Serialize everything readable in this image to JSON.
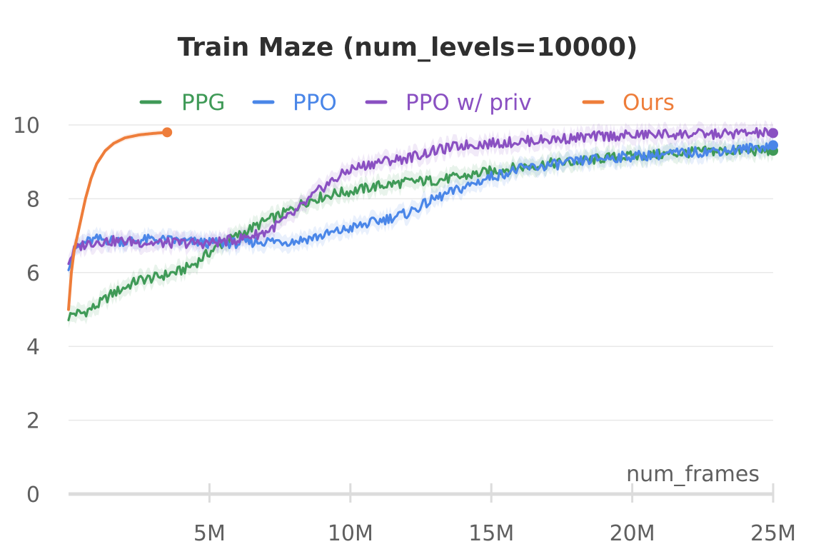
{
  "chart_data": {
    "type": "line",
    "title": "Train Maze (num_levels=10000)",
    "xlabel": "num_frames",
    "ylabel": "",
    "xlim": [
      0,
      25000000
    ],
    "ylim": [
      0,
      10
    ],
    "x_ticks": [
      {
        "value": 5000000,
        "label": "5M"
      },
      {
        "value": 10000000,
        "label": "10M"
      },
      {
        "value": 15000000,
        "label": "15M"
      },
      {
        "value": 20000000,
        "label": "20M"
      },
      {
        "value": 25000000,
        "label": "25M"
      }
    ],
    "y_ticks": [
      {
        "value": 0,
        "label": "0"
      },
      {
        "value": 2,
        "label": "2"
      },
      {
        "value": 4,
        "label": "4"
      },
      {
        "value": 6,
        "label": "6"
      },
      {
        "value": 8,
        "label": "8"
      },
      {
        "value": 10,
        "label": "10"
      }
    ],
    "grid": true,
    "legend": "top",
    "series": [
      {
        "name": "PPG",
        "color": "#3f9a57",
        "x": [
          0,
          200000,
          500000,
          1000000,
          1500000,
          2000000,
          2500000,
          3000000,
          3500000,
          4000000,
          4500000,
          5000000,
          5500000,
          6000000,
          6500000,
          7000000,
          7500000,
          8000000,
          8500000,
          9000000,
          9500000,
          10000000,
          11000000,
          12000000,
          13000000,
          14000000,
          15000000,
          16000000,
          17000000,
          18000000,
          19000000,
          20000000,
          21000000,
          22000000,
          23000000,
          24000000,
          25000000
        ],
        "values": [
          4.8,
          4.9,
          4.9,
          5.1,
          5.4,
          5.6,
          5.8,
          5.85,
          5.95,
          6.05,
          6.25,
          6.55,
          6.8,
          7.0,
          7.2,
          7.4,
          7.55,
          7.75,
          7.95,
          8.05,
          8.15,
          8.2,
          8.35,
          8.45,
          8.5,
          8.6,
          8.75,
          8.85,
          8.95,
          9.0,
          9.1,
          9.15,
          9.2,
          9.25,
          9.3,
          9.3,
          9.3
        ]
      },
      {
        "name": "PPO",
        "color": "#4a86e8",
        "x": [
          0,
          200000,
          500000,
          1000000,
          2000000,
          3000000,
          4000000,
          5000000,
          6000000,
          7000000,
          8000000,
          9000000,
          10000000,
          11000000,
          12000000,
          13000000,
          14000000,
          15000000,
          16000000,
          17000000,
          18000000,
          19000000,
          20000000,
          21000000,
          22000000,
          23000000,
          24000000,
          25000000
        ],
        "values": [
          6.2,
          6.6,
          6.8,
          6.9,
          6.85,
          6.9,
          6.85,
          6.8,
          6.8,
          6.85,
          6.85,
          7.0,
          7.2,
          7.4,
          7.6,
          8.0,
          8.3,
          8.6,
          8.8,
          8.9,
          9.0,
          9.1,
          9.15,
          9.2,
          9.25,
          9.3,
          9.35,
          9.45
        ]
      },
      {
        "name": "PPO w/ priv",
        "color": "#8a50c2",
        "x": [
          0,
          200000,
          500000,
          1000000,
          2000000,
          3000000,
          4000000,
          5000000,
          6000000,
          7000000,
          8000000,
          9000000,
          10000000,
          11000000,
          12000000,
          13000000,
          14000000,
          15000000,
          16000000,
          17000000,
          18000000,
          19000000,
          20000000,
          21000000,
          22000000,
          23000000,
          24000000,
          25000000
        ],
        "values": [
          6.3,
          6.6,
          6.75,
          6.85,
          6.85,
          6.8,
          6.8,
          6.8,
          6.9,
          7.1,
          7.6,
          8.3,
          8.8,
          9.0,
          9.1,
          9.3,
          9.45,
          9.5,
          9.55,
          9.6,
          9.65,
          9.7,
          9.72,
          9.75,
          9.75,
          9.75,
          9.78,
          9.78
        ]
      },
      {
        "name": "Ours",
        "color": "#ee7d3a",
        "x": [
          0,
          100000,
          200000,
          400000,
          600000,
          800000,
          1000000,
          1300000,
          1600000,
          2000000,
          2500000,
          3000000,
          3500000
        ],
        "values": [
          5.0,
          6.0,
          6.6,
          7.3,
          8.0,
          8.55,
          8.95,
          9.3,
          9.5,
          9.65,
          9.73,
          9.77,
          9.8
        ]
      }
    ]
  }
}
